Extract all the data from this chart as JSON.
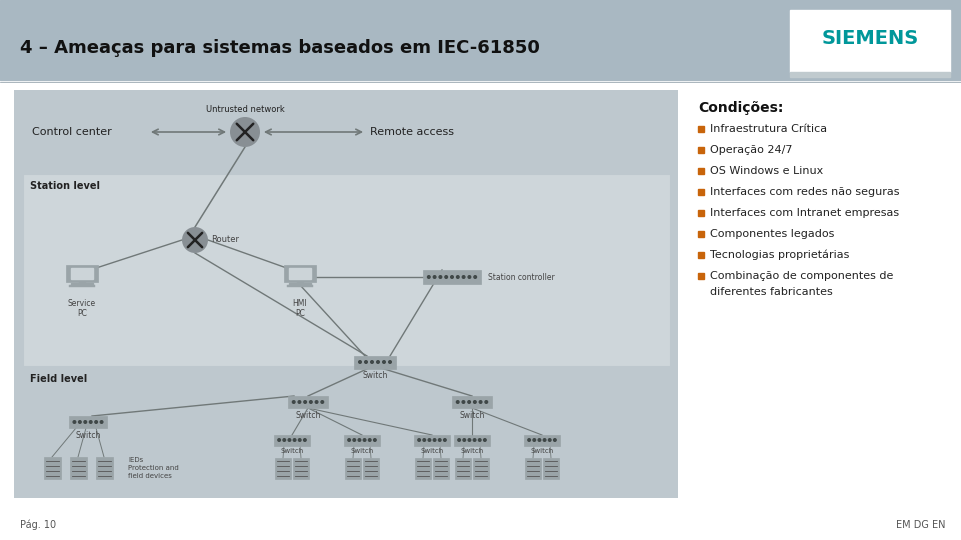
{
  "title": "4 – Ameaças para sistemas baseados em IEC-61850",
  "header_bg": "#a9b8c2",
  "slide_bg": "#ffffff",
  "siemens_color": "#00979a",
  "siemens_text": "SIEMENS",
  "diagram_bg": "#bec8ce",
  "station_level_bg": "#ced6da",
  "field_level_bg": "#bec8ce",
  "conditions_title": "Condições:",
  "conditions": [
    "Infraestrutura Crítica",
    "Operação 24/7",
    "OS Windows e Linux",
    "Interfaces com redes não seguras",
    "Interfaces com Intranet empresas",
    "Componentes legados",
    "Tecnologias proprietárias",
    "Combinação de componentes de",
    "diferentes fabricantes"
  ],
  "bullet_color": "#c8640a",
  "untrusted_label": "Untrusted network",
  "control_center_label": "Control center",
  "remote_access_label": "Remote access",
  "station_level_label": "Station level",
  "field_level_label": "Field level",
  "router_label": "Router",
  "service_pc_label": "Service\nPC",
  "hmi_pc_label": "HMI\nPC",
  "station_controller_label": "Station controller",
  "switch_label": "Switch",
  "ieds_label": "IEDs\nProtection and\nfield devices",
  "footer_left": "Pág. 10",
  "footer_right": "EM DG EN",
  "device_color": "#9aa4a8",
  "switch_color": "#9aa4a8",
  "line_color": "#707878",
  "node_color": "#888f94",
  "text_dark": "#222222",
  "text_label": "#444444"
}
